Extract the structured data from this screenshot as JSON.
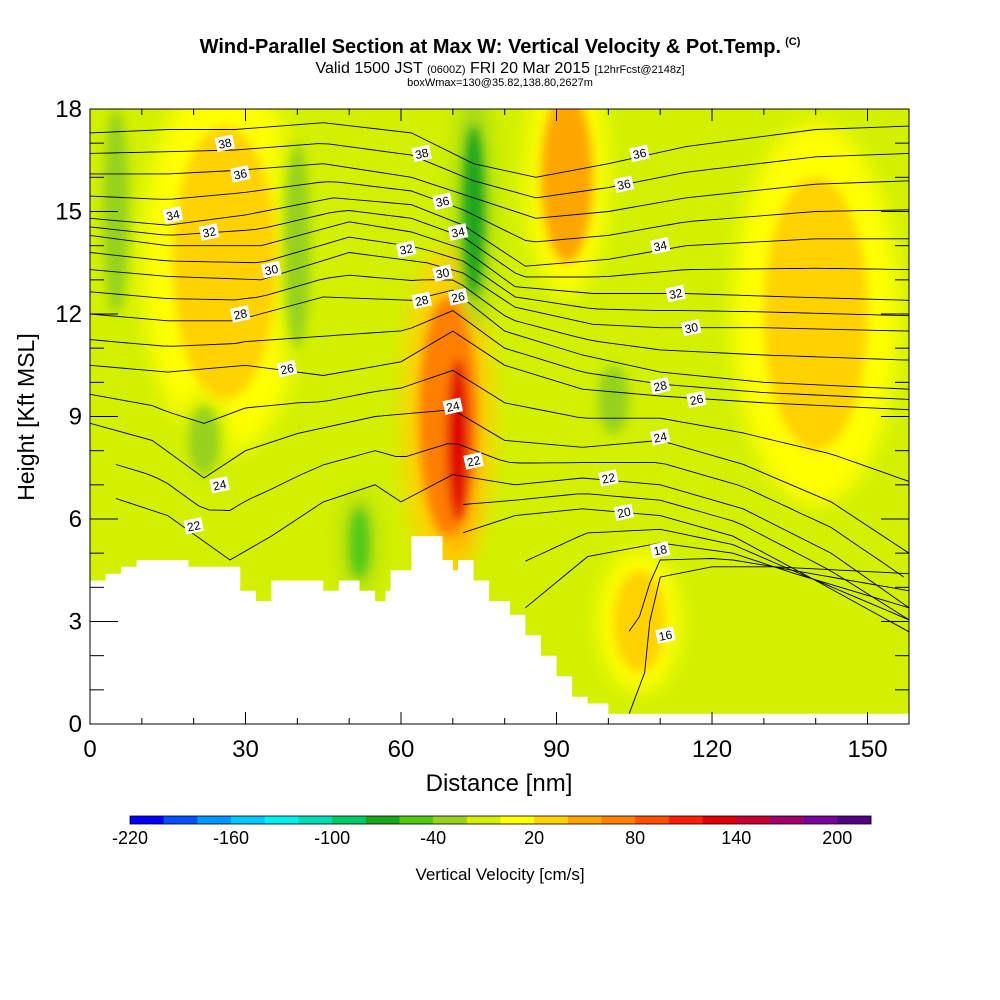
{
  "title": {
    "main": "Wind-Parallel Section at Max W: Vertical Velocity & Pot.Temp.",
    "copyright": "(C)",
    "valid_prefix": "Valid 1500 JST",
    "valid_utc": "(0600Z)",
    "valid_date": "FRI 20 Mar 2015",
    "forecast": "[12hrFcst@2148z]",
    "boxinfo": "boxWmax=130@35.82,138.80,2627m"
  },
  "chart_data": {
    "type": "heatmap",
    "xlabel": "Distance [nm]",
    "ylabel": "Height [Kft MSL]",
    "xlim": [
      0,
      158
    ],
    "ylim": [
      0,
      18
    ],
    "x_ticks": [
      0,
      30,
      60,
      90,
      120,
      150
    ],
    "y_ticks": [
      0,
      3,
      6,
      9,
      12,
      15,
      18
    ],
    "colorbar": {
      "label": "Vertical Velocity [cm/s]",
      "range": [
        -220,
        220
      ],
      "tick_values": [
        -220,
        -160,
        -100,
        -40,
        20,
        80,
        140,
        200
      ],
      "tick_labels": [
        "-220",
        "-160",
        "-100",
        "-40",
        "20",
        "80",
        "140",
        "200"
      ],
      "colors": [
        "#0000ff",
        "#0050ff",
        "#0096ff",
        "#00c8ff",
        "#00f0f0",
        "#00dcb4",
        "#00cc66",
        "#1aa51a",
        "#50c814",
        "#96d21e",
        "#d2f000",
        "#ffff00",
        "#ffd200",
        "#ffa500",
        "#ff7f00",
        "#ff5000",
        "#ff1e00",
        "#e10000",
        "#c80032",
        "#a0006e",
        "#78009b",
        "#500082"
      ]
    },
    "terrain_profile": {
      "distance": [
        0,
        3,
        3,
        6,
        6,
        9,
        9,
        19,
        19,
        29,
        29,
        32,
        32,
        35,
        35,
        38,
        38,
        45,
        45,
        48,
        48,
        52,
        52,
        55,
        55,
        57,
        57,
        58,
        58,
        62,
        62,
        64,
        64,
        68,
        68,
        70,
        70,
        71,
        71,
        74,
        74,
        77,
        77,
        81,
        81,
        84,
        84,
        87,
        87,
        90,
        90,
        93,
        93,
        96,
        96,
        100,
        100,
        104,
        104,
        158
      ],
      "height_kft": [
        4.2,
        4.2,
        4.4,
        4.4,
        4.6,
        4.6,
        4.8,
        4.8,
        4.6,
        4.6,
        3.9,
        3.9,
        3.6,
        3.6,
        4.2,
        4.2,
        4.2,
        4.2,
        3.9,
        3.9,
        4.2,
        4.2,
        3.9,
        3.9,
        3.6,
        3.6,
        3.9,
        3.9,
        4.5,
        4.5,
        5.5,
        5.5,
        5.5,
        5.5,
        4.8,
        4.8,
        4.5,
        4.5,
        4.8,
        4.8,
        4.2,
        4.2,
        3.6,
        3.6,
        3.2,
        3.2,
        2.6,
        2.6,
        2.0,
        2.0,
        1.4,
        1.4,
        0.8,
        0.8,
        0.6,
        0.6,
        0.3,
        0.3,
        0.3,
        0.3
      ]
    },
    "updraft_cores": [
      {
        "x": 71,
        "y": 8.3,
        "rx": 2.2,
        "ry": 2.4,
        "w": 130
      },
      {
        "x": 69,
        "y": 9.0,
        "rx": 5.5,
        "ry": 3.5,
        "w": 60
      },
      {
        "x": 92,
        "y": 16.0,
        "rx": 5.0,
        "ry": 2.5,
        "w": 40
      },
      {
        "x": 106,
        "y": 3.0,
        "rx": 5.0,
        "ry": 1.5,
        "w": 30
      },
      {
        "x": 26,
        "y": 13.5,
        "rx": 10.0,
        "ry": 4.0,
        "w": 25
      },
      {
        "x": 140,
        "y": 12.0,
        "rx": 10.0,
        "ry": 4.0,
        "w": 20
      }
    ],
    "downdraft_cores": [
      {
        "x": 74,
        "y": 15.0,
        "rx": 2.0,
        "ry": 2.5,
        "w": -80
      },
      {
        "x": 52,
        "y": 5.3,
        "rx": 1.7,
        "ry": 1.0,
        "w": -60
      },
      {
        "x": 22,
        "y": 8.3,
        "rx": 3.0,
        "ry": 1.0,
        "w": -40
      },
      {
        "x": 40,
        "y": 14.0,
        "rx": 2.5,
        "ry": 3.0,
        "w": -30
      },
      {
        "x": 5,
        "y": 15.0,
        "rx": 2.5,
        "ry": 3.0,
        "w": -30
      },
      {
        "x": 101,
        "y": 9.5,
        "rx": 3.0,
        "ry": 1.0,
        "w": -40
      },
      {
        "x": 140,
        "y": 1.5,
        "rx": 6.0,
        "ry": 1.0,
        "w": -20
      }
    ],
    "isentropes": [
      {
        "theta": "16",
        "points": [
          [
            104,
            0.3
          ],
          [
            107,
            1.5
          ],
          [
            108,
            3.0
          ],
          [
            110,
            4.3
          ],
          [
            120,
            4.6
          ],
          [
            132,
            4.6
          ],
          [
            158,
            4.4
          ]
        ]
      },
      {
        "theta": "18",
        "points": [
          [
            84,
            3.4
          ],
          [
            96,
            4.9
          ],
          [
            110,
            5.3
          ],
          [
            124,
            5.0
          ],
          [
            136,
            4.4
          ],
          [
            158,
            3.4
          ]
        ]
      },
      {
        "theta": "20",
        "points": [
          [
            72,
            5.6
          ],
          [
            82,
            6.1
          ],
          [
            95,
            6.3
          ],
          [
            110,
            6.1
          ],
          [
            124,
            5.5
          ],
          [
            140,
            4.2
          ],
          [
            158,
            2.7
          ]
        ]
      },
      {
        "theta": "22",
        "points": [
          [
            5,
            6.6
          ],
          [
            15,
            6.1
          ],
          [
            27,
            4.8
          ],
          [
            35,
            5.5
          ],
          [
            45,
            6.5
          ],
          [
            55,
            7.0
          ],
          [
            60,
            6.5
          ],
          [
            70,
            7.3
          ],
          [
            82,
            7.0
          ],
          [
            95,
            7.2
          ],
          [
            110,
            7.0
          ],
          [
            126,
            6.3
          ],
          [
            143,
            5.0
          ],
          [
            158,
            3.4
          ]
        ]
      },
      {
        "theta": "24",
        "points": [
          [
            0,
            8.8
          ],
          [
            12,
            8.3
          ],
          [
            22,
            7.2
          ],
          [
            30,
            8.0
          ],
          [
            40,
            8.5
          ],
          [
            55,
            9.0
          ],
          [
            70,
            9.2
          ],
          [
            80,
            8.3
          ],
          [
            95,
            8.1
          ],
          [
            110,
            8.3
          ],
          [
            126,
            7.6
          ],
          [
            143,
            6.5
          ],
          [
            158,
            5.0
          ]
        ]
      },
      {
        "theta": "26",
        "points": [
          [
            0,
            10.5
          ],
          [
            15,
            10.3
          ],
          [
            30,
            10.5
          ],
          [
            45,
            10.2
          ],
          [
            60,
            10.6
          ],
          [
            70,
            11.5
          ],
          [
            80,
            10.5
          ],
          [
            95,
            9.8
          ],
          [
            110,
            9.6
          ],
          [
            130,
            9.4
          ],
          [
            158,
            9.2
          ]
        ]
      },
      {
        "theta": "28",
        "points": [
          [
            0,
            12.0
          ],
          [
            15,
            11.8
          ],
          [
            28,
            11.8
          ],
          [
            45,
            12.5
          ],
          [
            62,
            12.4
          ],
          [
            70,
            12.7
          ],
          [
            80,
            11.5
          ],
          [
            95,
            10.8
          ],
          [
            110,
            10.3
          ],
          [
            130,
            10.0
          ],
          [
            158,
            9.8
          ]
        ]
      },
      {
        "theta": "30",
        "points": [
          [
            0,
            13.3
          ],
          [
            15,
            13.1
          ],
          [
            33,
            13.0
          ],
          [
            50,
            13.8
          ],
          [
            65,
            13.5
          ],
          [
            72,
            13.2
          ],
          [
            82,
            12.2
          ],
          [
            97,
            11.7
          ],
          [
            110,
            11.6
          ],
          [
            130,
            11.6
          ],
          [
            158,
            11.5
          ]
        ]
      },
      {
        "theta": "32",
        "points": [
          [
            0,
            14.3
          ],
          [
            15,
            14.0
          ],
          [
            33,
            14.0
          ],
          [
            50,
            14.7
          ],
          [
            62,
            14.4
          ],
          [
            72,
            13.9
          ],
          [
            82,
            12.8
          ],
          [
            97,
            12.6
          ],
          [
            115,
            12.6
          ],
          [
            135,
            12.5
          ],
          [
            158,
            12.4
          ]
        ]
      },
      {
        "theta": "34",
        "points": [
          [
            0,
            14.8
          ],
          [
            15,
            14.6
          ],
          [
            30,
            14.9
          ],
          [
            47,
            15.4
          ],
          [
            62,
            15.2
          ],
          [
            72,
            14.6
          ],
          [
            84,
            13.4
          ],
          [
            100,
            13.6
          ],
          [
            115,
            14.0
          ],
          [
            140,
            14.2
          ],
          [
            158,
            14.2
          ]
        ]
      },
      {
        "theta": "36",
        "points": [
          [
            0,
            16.1
          ],
          [
            15,
            16.1
          ],
          [
            28,
            16.2
          ],
          [
            45,
            16.4
          ],
          [
            62,
            16.0
          ],
          [
            74,
            15.4
          ],
          [
            86,
            14.8
          ],
          [
            100,
            15.0
          ],
          [
            115,
            15.4
          ],
          [
            140,
            15.8
          ],
          [
            158,
            15.9
          ]
        ]
      },
      {
        "theta": "38",
        "points": [
          [
            0,
            17.3
          ],
          [
            15,
            17.4
          ],
          [
            28,
            17.4
          ],
          [
            45,
            17.6
          ],
          [
            62,
            17.3
          ],
          [
            74,
            16.4
          ],
          [
            86,
            16.0
          ],
          [
            100,
            16.4
          ],
          [
            115,
            16.9
          ],
          [
            140,
            17.4
          ],
          [
            158,
            17.5
          ]
        ]
      }
    ],
    "contour_labels": [
      {
        "text": "38",
        "x": 26,
        "y": 17.0
      },
      {
        "text": "36",
        "x": 29,
        "y": 16.1
      },
      {
        "text": "34",
        "x": 16,
        "y": 14.9
      },
      {
        "text": "32",
        "x": 23,
        "y": 14.4
      },
      {
        "text": "30",
        "x": 35,
        "y": 13.3
      },
      {
        "text": "28",
        "x": 29,
        "y": 12.0
      },
      {
        "text": "26",
        "x": 38,
        "y": 10.4
      },
      {
        "text": "24",
        "x": 25,
        "y": 7.0
      },
      {
        "text": "22",
        "x": 20,
        "y": 5.8
      },
      {
        "text": "38",
        "x": 64,
        "y": 16.7
      },
      {
        "text": "36",
        "x": 68,
        "y": 15.3
      },
      {
        "text": "34",
        "x": 71,
        "y": 14.4
      },
      {
        "text": "32",
        "x": 61,
        "y": 13.9
      },
      {
        "text": "30",
        "x": 68,
        "y": 13.2
      },
      {
        "text": "28",
        "x": 64,
        "y": 12.4
      },
      {
        "text": "26",
        "x": 71,
        "y": 12.5
      },
      {
        "text": "24",
        "x": 70,
        "y": 9.3
      },
      {
        "text": "22",
        "x": 74,
        "y": 7.7
      },
      {
        "text": "36",
        "x": 106,
        "y": 16.7
      },
      {
        "text": "36",
        "x": 103,
        "y": 15.8
      },
      {
        "text": "34",
        "x": 110,
        "y": 14.0
      },
      {
        "text": "32",
        "x": 113,
        "y": 12.6
      },
      {
        "text": "30",
        "x": 116,
        "y": 11.6
      },
      {
        "text": "28",
        "x": 110,
        "y": 9.9
      },
      {
        "text": "26",
        "x": 117,
        "y": 9.5
      },
      {
        "text": "24",
        "x": 110,
        "y": 8.4
      },
      {
        "text": "22",
        "x": 100,
        "y": 7.2
      },
      {
        "text": "20",
        "x": 103,
        "y": 6.2
      },
      {
        "text": "18",
        "x": 110,
        "y": 5.1
      },
      {
        "text": "16",
        "x": 111,
        "y": 2.6
      }
    ]
  }
}
